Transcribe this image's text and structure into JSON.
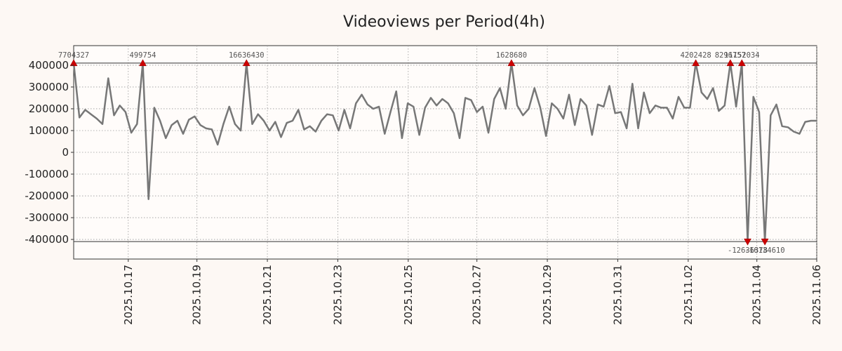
{
  "chart_data": {
    "type": "line",
    "title": "Videoviews per Period(4h)",
    "xlabel": "",
    "ylabel": "",
    "colors": {
      "line": "#777777",
      "marker": "#cc0000",
      "grid": "#999999",
      "background": "#fdf8f4",
      "plot_background": "#fffcfa"
    },
    "grid": true,
    "xlim": [
      0,
      21.1
    ],
    "ylim": [
      -490000,
      490000
    ],
    "x_ticks": [
      {
        "x": 1.55,
        "label": "2025.10.17"
      },
      {
        "x": 3.5,
        "label": "2025.10.19"
      },
      {
        "x": 5.5,
        "label": "2025.10.21"
      },
      {
        "x": 7.5,
        "label": "2025.10.23"
      },
      {
        "x": 9.5,
        "label": "2025.10.25"
      },
      {
        "x": 11.45,
        "label": "2025.10.27"
      },
      {
        "x": 13.45,
        "label": "2025.10.29"
      },
      {
        "x": 15.45,
        "label": "2025.10.31"
      },
      {
        "x": 17.45,
        "label": "2025.11.02"
      },
      {
        "x": 19.4,
        "label": "2025.11.04"
      },
      {
        "x": 21.4,
        "label": "2025.11.06"
      }
    ],
    "y_ticks": [
      {
        "value": 400000,
        "label": "400000"
      },
      {
        "value": 300000,
        "label": "300000"
      },
      {
        "value": 200000,
        "label": "200000"
      },
      {
        "value": 100000,
        "label": "100000"
      },
      {
        "value": 0,
        "label": "0"
      },
      {
        "value": -100000,
        "label": "-100000"
      },
      {
        "value": -200000,
        "label": "-200000"
      },
      {
        "value": -300000,
        "label": "-300000"
      },
      {
        "value": -400000,
        "label": "-400000"
      }
    ],
    "clip_lines": [
      410000,
      -410000
    ],
    "series": [
      {
        "name": "Videoviews",
        "values": [
          410000,
          160000,
          195000,
          175000,
          155000,
          130000,
          340000,
          170000,
          215000,
          185000,
          90000,
          130000,
          410000,
          -215000,
          205000,
          145000,
          65000,
          125000,
          145000,
          85000,
          150000,
          165000,
          125000,
          110000,
          105000,
          35000,
          130000,
          210000,
          130000,
          100000,
          410000,
          130000,
          175000,
          145000,
          100000,
          140000,
          70000,
          135000,
          145000,
          195000,
          105000,
          120000,
          95000,
          145000,
          175000,
          170000,
          100000,
          195000,
          110000,
          225000,
          265000,
          220000,
          200000,
          210000,
          85000,
          185000,
          280000,
          65000,
          225000,
          210000,
          80000,
          205000,
          250000,
          215000,
          245000,
          225000,
          180000,
          65000,
          250000,
          240000,
          185000,
          210000,
          90000,
          245000,
          295000,
          200000,
          410000,
          215000,
          170000,
          200000,
          295000,
          205000,
          75000,
          225000,
          200000,
          155000,
          265000,
          125000,
          245000,
          215000,
          80000,
          220000,
          210000,
          305000,
          180000,
          185000,
          110000,
          315000,
          110000,
          275000,
          180000,
          215000,
          205000,
          205000,
          155000,
          255000,
          205000,
          205000,
          410000,
          275000,
          245000,
          295000,
          190000,
          215000,
          410000,
          210000,
          410000,
          -410000,
          255000,
          185000,
          -410000,
          170000,
          220000,
          120000,
          115000,
          95000,
          85000,
          140000,
          145000,
          145000
        ]
      }
    ],
    "annotations": [
      {
        "index": 0,
        "label": "7704327",
        "position": "above"
      },
      {
        "index": 12,
        "label": "499754",
        "position": "above"
      },
      {
        "index": 30,
        "label": "16636430",
        "position": "above"
      },
      {
        "index": 76,
        "label": "1628680",
        "position": "above"
      },
      {
        "index": 108,
        "label": "4202428",
        "position": "above"
      },
      {
        "index": 114,
        "label": "8296757",
        "position": "above"
      },
      {
        "index": 116,
        "label": "11152034",
        "position": "above"
      },
      {
        "index": 117,
        "label": "-12636378",
        "position": "below"
      },
      {
        "index": 120,
        "label": "-16134610",
        "position": "below"
      }
    ]
  }
}
